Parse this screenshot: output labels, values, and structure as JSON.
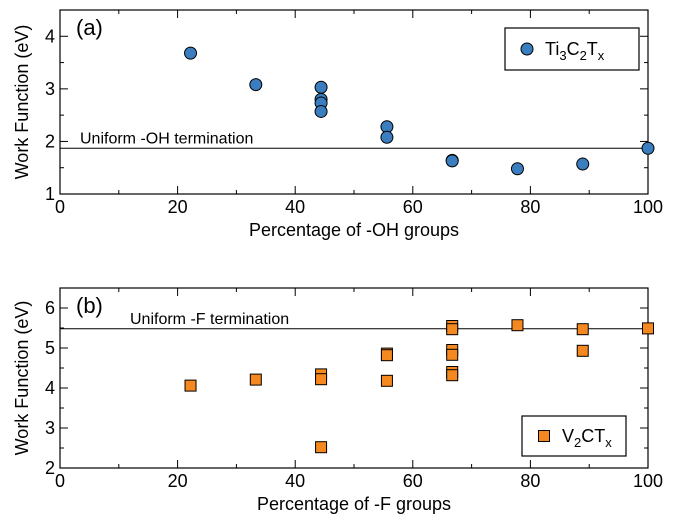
{
  "chart_data": [
    {
      "type": "scatter",
      "panel_label": "(a)",
      "xlabel": "Percentage of -OH groups",
      "ylabel": "Work Function (eV)",
      "xlim": [
        0,
        100
      ],
      "ylim": [
        1,
        4.5
      ],
      "xticks": [
        0,
        20,
        40,
        60,
        80,
        100
      ],
      "yticks": [
        1,
        2,
        3,
        4
      ],
      "legend": {
        "position": "top-right",
        "base": "Ti",
        "parts": [
          [
            "Ti",
            ""
          ],
          [
            "3",
            "sub"
          ],
          [
            "C",
            ""
          ],
          [
            "2",
            "sub"
          ],
          [
            "T",
            ""
          ],
          [
            "x",
            "sub"
          ]
        ]
      },
      "reference_line": {
        "y": 1.87,
        "label": "Uniform -OH termination"
      },
      "series": [
        {
          "name": "Ti3C2Tx",
          "marker": "circle",
          "color": "#3a7ebf",
          "points": [
            {
              "x": 22.2,
              "y": 3.68
            },
            {
              "x": 33.3,
              "y": 3.08
            },
            {
              "x": 44.4,
              "y": 3.03
            },
            {
              "x": 44.4,
              "y": 2.8
            },
            {
              "x": 44.4,
              "y": 2.73
            },
            {
              "x": 44.4,
              "y": 2.57
            },
            {
              "x": 55.6,
              "y": 2.28
            },
            {
              "x": 55.6,
              "y": 2.08
            },
            {
              "x": 66.7,
              "y": 1.64
            },
            {
              "x": 66.7,
              "y": 1.63
            },
            {
              "x": 77.8,
              "y": 1.48
            },
            {
              "x": 88.9,
              "y": 1.57
            },
            {
              "x": 100,
              "y": 1.87
            }
          ]
        }
      ]
    },
    {
      "type": "scatter",
      "panel_label": "(b)",
      "xlabel": "Percentage of -F groups",
      "ylabel": "Work Function (eV)",
      "xlim": [
        0,
        100
      ],
      "ylim": [
        2,
        6.5
      ],
      "xticks": [
        0,
        20,
        40,
        60,
        80,
        100
      ],
      "yticks": [
        2,
        3,
        4,
        5,
        6
      ],
      "legend": {
        "position": "bottom-right",
        "parts": [
          [
            "V",
            ""
          ],
          [
            "2",
            "sub"
          ],
          [
            "CT",
            ""
          ],
          [
            "x",
            "sub"
          ]
        ]
      },
      "reference_line": {
        "y": 5.48,
        "label": "Uniform -F termination"
      },
      "series": [
        {
          "name": "V2CTx",
          "marker": "square",
          "color": "#f5891f",
          "points": [
            {
              "x": 22.2,
              "y": 4.06
            },
            {
              "x": 33.3,
              "y": 4.21
            },
            {
              "x": 44.4,
              "y": 4.34
            },
            {
              "x": 44.4,
              "y": 4.22
            },
            {
              "x": 44.4,
              "y": 2.52
            },
            {
              "x": 55.6,
              "y": 4.86
            },
            {
              "x": 55.6,
              "y": 4.82
            },
            {
              "x": 55.6,
              "y": 4.18
            },
            {
              "x": 66.7,
              "y": 5.55
            },
            {
              "x": 66.7,
              "y": 5.47
            },
            {
              "x": 66.7,
              "y": 4.95
            },
            {
              "x": 66.7,
              "y": 4.83
            },
            {
              "x": 66.7,
              "y": 4.4
            },
            {
              "x": 66.7,
              "y": 4.32
            },
            {
              "x": 77.8,
              "y": 5.57
            },
            {
              "x": 88.9,
              "y": 5.47
            },
            {
              "x": 88.9,
              "y": 4.93
            },
            {
              "x": 100,
              "y": 5.49
            }
          ]
        }
      ]
    }
  ]
}
